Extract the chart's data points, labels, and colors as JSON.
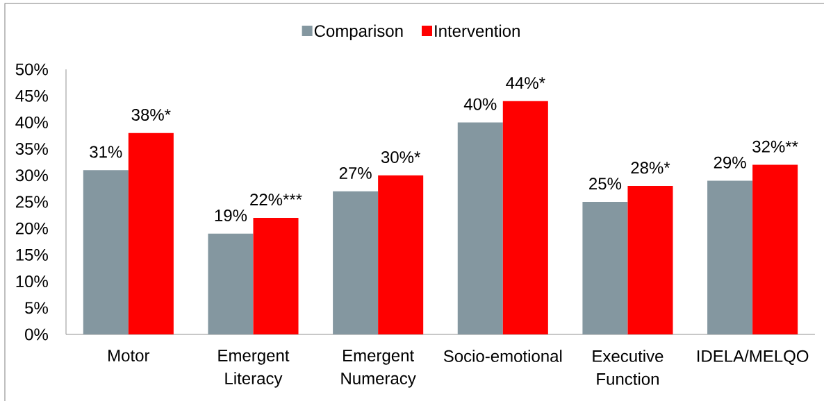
{
  "chart_data": {
    "type": "bar",
    "categories": [
      "Motor",
      "Emergent Literacy",
      "Emergent Numeracy",
      "Socio-emotional",
      "Executive Function",
      "IDELA/MELQO"
    ],
    "series": [
      {
        "name": "Comparison",
        "color": "#8497a0",
        "values": [
          31,
          19,
          27,
          40,
          25,
          29
        ],
        "value_labels": [
          "31%",
          "19%",
          "27%",
          "40%",
          "25%",
          "29%"
        ]
      },
      {
        "name": "Intervention",
        "color": "#ff0000",
        "values": [
          38,
          22,
          30,
          44,
          28,
          32
        ],
        "value_labels": [
          "38%*",
          "22%***",
          "30%*",
          "44%*",
          "28%*",
          "32%**"
        ]
      }
    ],
    "ylim": [
      0,
      50
    ],
    "yticks": [
      {
        "value": 0,
        "label": "0%"
      },
      {
        "value": 5,
        "label": "5%"
      },
      {
        "value": 10,
        "label": "10%"
      },
      {
        "value": 15,
        "label": "15%"
      },
      {
        "value": 20,
        "label": "20%"
      },
      {
        "value": 25,
        "label": "25%"
      },
      {
        "value": 30,
        "label": "30%"
      },
      {
        "value": 35,
        "label": "35%"
      },
      {
        "value": 40,
        "label": "40%"
      },
      {
        "value": 45,
        "label": "45%"
      },
      {
        "value": 50,
        "label": "50%"
      }
    ],
    "legend": "top"
  }
}
